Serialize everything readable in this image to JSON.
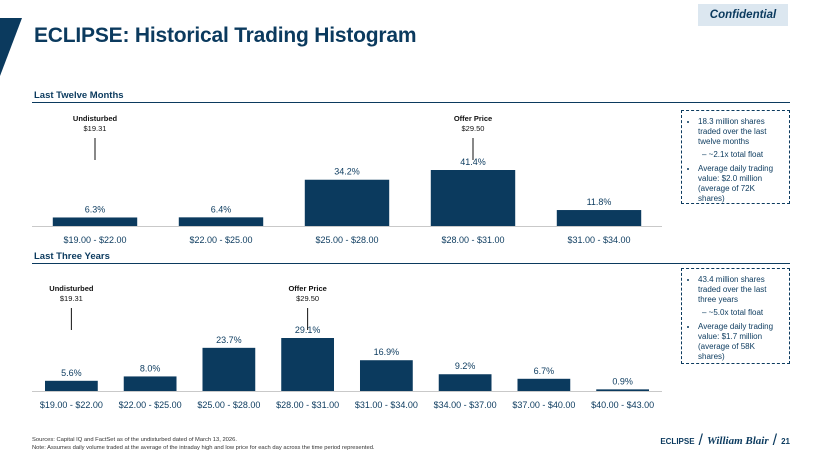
{
  "header": {
    "title": "ECLIPSE: Historical Trading Histogram",
    "confidential": "Confidential"
  },
  "chart_data": [
    {
      "type": "bar",
      "section_label": "Last Twelve Months",
      "categories": [
        "$19.00 - $22.00",
        "$22.00 - $25.00",
        "$25.00 - $28.00",
        "$28.00 - $31.00",
        "$31.00 - $34.00"
      ],
      "values": [
        6.3,
        6.4,
        34.2,
        41.4,
        11.8
      ],
      "value_labels": [
        "6.3%",
        "6.4%",
        "34.2%",
        "41.4%",
        "11.8%"
      ],
      "bar_color": "#0b3a5e",
      "annotations": [
        {
          "title": "Undisturbed",
          "price": "$19.31",
          "category_index": 0
        },
        {
          "title": "Offer Price",
          "price": "$29.50",
          "category_index": 3
        }
      ]
    },
    {
      "type": "bar",
      "section_label": "Last Three Years",
      "categories": [
        "$19.00 - $22.00",
        "$22.00 - $25.00",
        "$25.00 - $28.00",
        "$28.00 - $31.00",
        "$31.00 - $34.00",
        "$34.00 - $37.00",
        "$37.00 - $40.00",
        "$40.00 - $43.00"
      ],
      "values": [
        5.6,
        8.0,
        23.7,
        29.1,
        16.9,
        9.2,
        6.7,
        0.9
      ],
      "value_labels": [
        "5.6%",
        "8.0%",
        "23.7%",
        "29.1%",
        "16.9%",
        "9.2%",
        "6.7%",
        "0.9%"
      ],
      "bar_color": "#0b3a5e",
      "annotations": [
        {
          "title": "Undisturbed",
          "price": "$19.31",
          "category_index": 0
        },
        {
          "title": "Offer Price",
          "price": "$29.50",
          "category_index": 3
        }
      ]
    }
  ],
  "notes": [
    {
      "items": [
        {
          "text": "18.3 million shares traded over the last twelve months",
          "sub": "– ~2.1x total float"
        },
        {
          "text": "Average daily trading value: $2.0 million (average of 72K shares)",
          "sub": ""
        }
      ]
    },
    {
      "items": [
        {
          "text": "43.4 million shares traded over the last three years",
          "sub": "– ~5.0x total float"
        },
        {
          "text": "Average daily trading value: $1.7 million (average of 58K shares)",
          "sub": ""
        }
      ]
    }
  ],
  "footer": {
    "line1": "Sources: Capital IQ and FactSet as of the undisturbed dated of March 13, 2026.",
    "line2": "Note: Assumes daily volume traded at the average of the intraday high and low price for each day across the time period represented."
  },
  "brand": {
    "company": "ECLIPSE",
    "firm": "William Blair",
    "page": "21"
  }
}
